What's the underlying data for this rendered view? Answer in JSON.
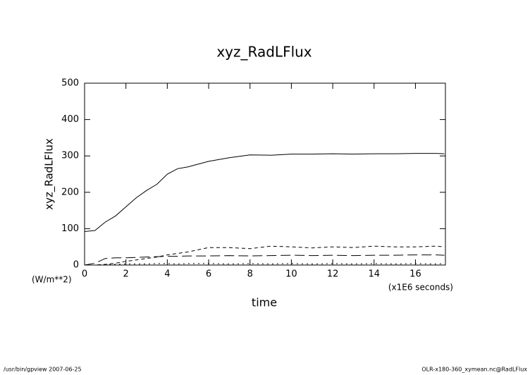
{
  "chart_data": {
    "type": "line",
    "title": "xyz_RadLFlux",
    "xlabel": "time",
    "ylabel": "xyz_RadLFlux",
    "yunits": "(W/m**2)",
    "xunits": "(x1E6 seconds)",
    "footer_left": "/usr/bin/gpview  2007-06-25",
    "footer_right": "OLR-x180-360_xymean.nc@RadLFlux",
    "x": [
      0,
      0.5,
      1,
      1.5,
      2,
      2.5,
      3,
      3.5,
      4,
      4.5,
      5,
      6,
      7,
      8,
      9,
      10,
      11,
      12,
      13,
      14,
      15,
      16,
      17,
      17.4
    ],
    "series": [
      {
        "color": "#000000",
        "style": "solid",
        "values": [
          92,
          95,
          118,
          135,
          160,
          185,
          205,
          222,
          250,
          265,
          270,
          285,
          295,
          303,
          302,
          305,
          305,
          306,
          305,
          306,
          306,
          307,
          307,
          306
        ]
      },
      {
        "color": "#000000",
        "style": "dashed",
        "values": [
          0,
          0,
          2,
          5,
          10,
          14,
          18,
          22,
          28,
          32,
          36,
          48,
          48,
          45,
          52,
          50,
          47,
          50,
          48,
          52,
          50,
          50,
          52,
          50
        ]
      },
      {
        "color": "#000000",
        "style": "long-dash",
        "values": [
          0,
          5,
          18,
          20,
          20,
          21,
          22,
          23,
          24,
          24,
          25,
          25,
          26,
          25,
          26,
          27,
          26,
          27,
          26,
          27,
          27,
          28,
          28,
          27
        ]
      },
      {
        "color": "#000000",
        "style": "dotted",
        "values": [
          0,
          0,
          1,
          2,
          3,
          3,
          3,
          4,
          4,
          3,
          4,
          4,
          3,
          4,
          3,
          4,
          3,
          4,
          3,
          4,
          3,
          4,
          3,
          4
        ]
      }
    ],
    "xlim": [
      0,
      17.45
    ],
    "xticks": [
      0,
      2,
      4,
      6,
      8,
      10,
      12,
      14,
      16
    ],
    "ylim": [
      0,
      500
    ],
    "yticks": [
      0,
      100,
      200,
      300,
      400,
      500
    ]
  }
}
